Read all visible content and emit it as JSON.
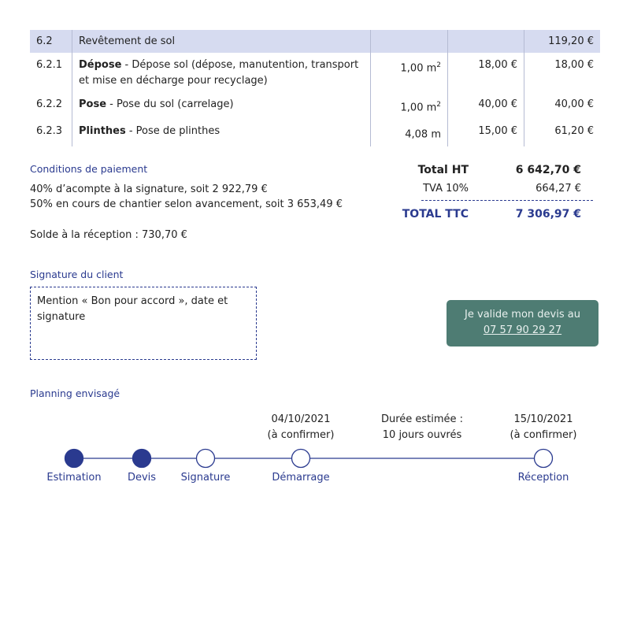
{
  "table": {
    "section": {
      "num": "6.2",
      "label": "Revêtement de sol",
      "total": "119,20 €"
    },
    "items": [
      {
        "num": "6.2.1",
        "title": "Dépose",
        "desc": " - Dépose sol (dépose, manutention, transport et mise en décharge pour recyclage)",
        "qty": "1,00 m",
        "sup": "2",
        "unit": "18,00 €",
        "total": "18,00 €"
      },
      {
        "num": "6.2.2",
        "title": "Pose",
        "desc": " - Pose du sol (carrelage)",
        "qty": "1,00 m",
        "sup": "2",
        "unit": "40,00 €",
        "total": "40,00 €"
      },
      {
        "num": "6.2.3",
        "title": "Plinthes",
        "desc": " - Pose de plinthes",
        "qty": "4,08 m",
        "sup": "",
        "unit": "15,00 €",
        "total": "61,20 €"
      }
    ]
  },
  "payment": {
    "heading": "Conditions de paiement",
    "lines": [
      "40% d’acompte à la signature, soit 2 922,79 €",
      "50% en cours de chantier selon avancement, soit 3 653,49 €",
      "Solde à la réception : 730,70 €"
    ]
  },
  "totals": {
    "ht_label": "Total HT",
    "ht": "6 642,70 €",
    "tva_label": "TVA 10%",
    "tva": "664,27 €",
    "ttc_label": "TOTAL TTC",
    "ttc": "7 306,97 €"
  },
  "signature": {
    "heading": "Signature du client",
    "box": "Mention « Bon pour accord », date et signature"
  },
  "validate": {
    "label": "Je valide mon devis au",
    "phone": "07 57 90 29 27"
  },
  "planning": {
    "heading": "Planning envisagé",
    "steps": [
      {
        "label": "Estimation",
        "done": true
      },
      {
        "label": "Devis",
        "done": true
      },
      {
        "label": "Signature",
        "done": false
      },
      {
        "label": "Démarrage",
        "done": false
      },
      {
        "label": "Réception",
        "done": false
      }
    ],
    "start": {
      "date": "04/10/2021",
      "note": "(à confirmer)"
    },
    "duration": {
      "label": "Durée estimée :",
      "value": "10 jours ouvrés"
    },
    "end": {
      "date": "15/10/2021",
      "note": "(à confirmer)"
    }
  },
  "colors": {
    "accent": "#2a3a8f",
    "button": "#4e7c73",
    "header_bg": "#d6dbf0"
  }
}
